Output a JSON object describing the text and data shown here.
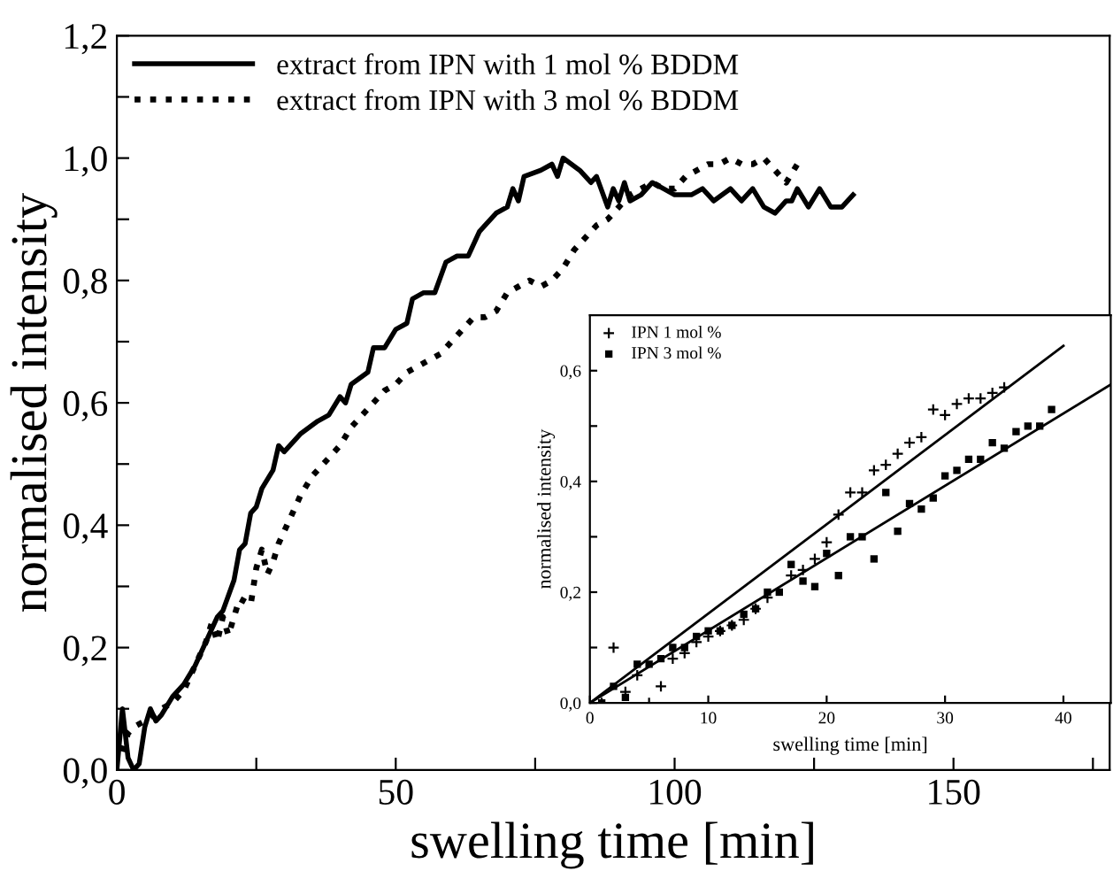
{
  "chart_data": [
    {
      "type": "line",
      "xlabel": "swelling time [min]",
      "ylabel": "normalised intensity",
      "xlim": [
        0,
        178
      ],
      "ylim": [
        0,
        1.2
      ],
      "xticks": [
        0,
        {
          "value": 25,
          "label": null
        },
        50,
        {
          "value": 75,
          "label": null
        },
        100,
        {
          "value": 125,
          "label": null
        },
        150,
        {
          "value": 175,
          "label": null
        }
      ],
      "yticks": [
        {
          "value": 0,
          "label": "0,0"
        },
        {
          "value": 0.1,
          "label": null
        },
        {
          "value": 0.2,
          "label": "0,2"
        },
        {
          "value": 0.3,
          "label": null
        },
        {
          "value": 0.4,
          "label": "0,4"
        },
        {
          "value": 0.5,
          "label": null
        },
        {
          "value": 0.6,
          "label": "0,6"
        },
        {
          "value": 0.7,
          "label": null
        },
        {
          "value": 0.8,
          "label": "0,8"
        },
        {
          "value": 0.9,
          "label": null
        },
        {
          "value": 1.0,
          "label": "1,0"
        },
        {
          "value": 1.1,
          "label": null
        },
        {
          "value": 1.2,
          "label": "1,2"
        }
      ],
      "legend": "top left",
      "grid": false,
      "marker": "none",
      "series": [
        {
          "name": "extract from IPN with 1 mol % BDDM",
          "color": "#000000",
          "line_style": "solid",
          "x": [
            0,
            1,
            2,
            3,
            4,
            5,
            6,
            7,
            8,
            10,
            12,
            14,
            16,
            18,
            19,
            21,
            22,
            23,
            24,
            25,
            26,
            28,
            29,
            30,
            33,
            36,
            38,
            40,
            41,
            42,
            45,
            46,
            48,
            50,
            52,
            53,
            55,
            57,
            59,
            61,
            63,
            65,
            68,
            70,
            71,
            72,
            73,
            76,
            78,
            79,
            80,
            83,
            85,
            86,
            88,
            89,
            90,
            91,
            92,
            94,
            96,
            98,
            100,
            103,
            105,
            107,
            110,
            112,
            114,
            116,
            118,
            120,
            121,
            122,
            124,
            126,
            128,
            130,
            132
          ],
          "values": [
            0,
            0.1,
            0.02,
            0,
            0.01,
            0.07,
            0.1,
            0.08,
            0.09,
            0.12,
            0.14,
            0.17,
            0.21,
            0.25,
            0.26,
            0.31,
            0.36,
            0.37,
            0.42,
            0.43,
            0.46,
            0.49,
            0.53,
            0.52,
            0.55,
            0.57,
            0.58,
            0.61,
            0.6,
            0.63,
            0.65,
            0.69,
            0.69,
            0.72,
            0.73,
            0.77,
            0.78,
            0.78,
            0.83,
            0.84,
            0.84,
            0.88,
            0.91,
            0.92,
            0.95,
            0.93,
            0.97,
            0.98,
            0.99,
            0.97,
            1.0,
            0.98,
            0.96,
            0.97,
            0.92,
            0.95,
            0.93,
            0.96,
            0.93,
            0.94,
            0.96,
            0.95,
            0.94,
            0.94,
            0.95,
            0.93,
            0.95,
            0.93,
            0.95,
            0.92,
            0.91,
            0.93,
            0.93,
            0.95,
            0.92,
            0.95,
            0.92,
            0.92,
            0.94
          ]
        },
        {
          "name": "extract from IPN with 3 mol % BDDM",
          "color": "#000000",
          "line_style": "dotted",
          "x": [
            1,
            2,
            3,
            5,
            8,
            10,
            12,
            14,
            16,
            17,
            18,
            19,
            20,
            21,
            22,
            24,
            25,
            26,
            27,
            28,
            29,
            31,
            33,
            35,
            37,
            40,
            42,
            44,
            46,
            48,
            50,
            52,
            54,
            56,
            58,
            60,
            62,
            64,
            66,
            68,
            70,
            72,
            74,
            76,
            78,
            80,
            82,
            84,
            86,
            88,
            90,
            92,
            94,
            96,
            98,
            100,
            102,
            104,
            106,
            108,
            110,
            112,
            114,
            116,
            118,
            120,
            122
          ],
          "values": [
            0.03,
            0.06,
            0.07,
            0.08,
            0.1,
            0.11,
            0.13,
            0.17,
            0.21,
            0.24,
            0.21,
            0.25,
            0.22,
            0.25,
            0.28,
            0.27,
            0.33,
            0.36,
            0.32,
            0.34,
            0.37,
            0.41,
            0.45,
            0.48,
            0.5,
            0.53,
            0.56,
            0.58,
            0.6,
            0.62,
            0.63,
            0.65,
            0.66,
            0.67,
            0.68,
            0.7,
            0.72,
            0.74,
            0.74,
            0.75,
            0.78,
            0.79,
            0.8,
            0.79,
            0.8,
            0.82,
            0.85,
            0.87,
            0.89,
            0.9,
            0.92,
            0.94,
            0.95,
            0.96,
            0.95,
            0.95,
            0.97,
            0.98,
            0.99,
            0.99,
            1.0,
            0.99,
            0.99,
            1.0,
            0.98,
            0.96,
            0.99
          ]
        }
      ]
    },
    {
      "type": "scatter",
      "xlabel": "swelling time [min]",
      "ylabel": "normalised intensity",
      "xlim": [
        0,
        44
      ],
      "ylim": [
        0,
        0.7
      ],
      "xticks": [
        0,
        10,
        20,
        30,
        40
      ],
      "yticks": [
        {
          "value": 0,
          "label": "0,0"
        },
        {
          "value": 0.1,
          "label": null
        },
        {
          "value": 0.2,
          "label": "0,2"
        },
        {
          "value": 0.3,
          "label": null
        },
        {
          "value": 0.4,
          "label": "0,4"
        },
        {
          "value": 0.5,
          "label": null
        },
        {
          "value": 0.6,
          "label": "0,6"
        }
      ],
      "legend": "top left",
      "grid": false,
      "series": [
        {
          "name": "IPN 1 mol %",
          "color": "#000000",
          "marker": "cross",
          "x": [
            1,
            2,
            3,
            4,
            5,
            6,
            7,
            8,
            9,
            10,
            11,
            12,
            13,
            14,
            15,
            17,
            18,
            19,
            20,
            21,
            22,
            23,
            24,
            25,
            26,
            27,
            28,
            29,
            30,
            31,
            32,
            33,
            34,
            35
          ],
          "values": [
            0,
            0.1,
            0.02,
            0.05,
            0,
            0.03,
            0.08,
            0.09,
            0.11,
            0.12,
            0.13,
            0.14,
            0.15,
            0.17,
            0.19,
            0.23,
            0.24,
            0.26,
            0.29,
            0.34,
            0.38,
            0.38,
            0.42,
            0.43,
            0.45,
            0.47,
            0.48,
            0.53,
            0.52,
            0.54,
            0.55,
            0.55,
            0.56,
            0.57
          ]
        },
        {
          "name": "IPN 3 mol %",
          "color": "#000000",
          "marker": "square",
          "x": [
            1,
            2,
            3,
            4,
            5,
            6,
            7,
            8,
            9,
            10,
            11,
            12,
            13,
            14,
            15,
            16,
            17,
            18,
            19,
            20,
            21,
            22,
            23,
            24,
            25,
            26,
            27,
            28,
            29,
            30,
            31,
            32,
            33,
            34,
            35,
            36,
            37,
            38,
            39
          ],
          "values": [
            0,
            0.03,
            0.01,
            0.07,
            0.07,
            0.08,
            0.1,
            0.1,
            0.12,
            0.13,
            0.13,
            0.14,
            0.16,
            0.17,
            0.2,
            0.2,
            0.25,
            0.22,
            0.21,
            0.27,
            0.23,
            0.3,
            0.3,
            0.26,
            0.38,
            0.31,
            0.36,
            0.35,
            0.37,
            0.41,
            0.42,
            0.44,
            0.44,
            0.47,
            0.46,
            0.49,
            0.5,
            0.5,
            0.53
          ]
        },
        {
          "type": "line",
          "color": "#000000",
          "line_style": "solid",
          "x": [
            0,
            40
          ],
          "values": [
            0,
            0.645
          ]
        },
        {
          "type": "line",
          "color": "#000000",
          "line_style": "solid",
          "x": [
            0,
            44
          ],
          "values": [
            0,
            0.575
          ]
        }
      ]
    }
  ]
}
